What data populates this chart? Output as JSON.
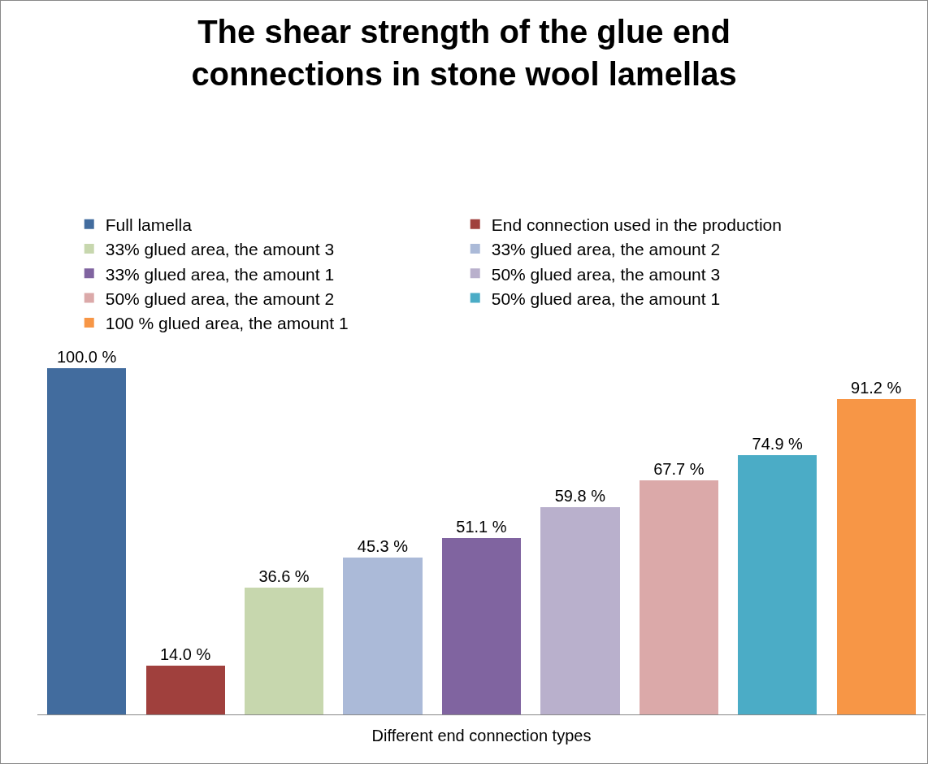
{
  "chart_data": {
    "type": "bar",
    "title": "The shear strength of the glue end connections in stone wool lamellas",
    "xlabel": "Different end connection types",
    "categories": [
      null,
      null,
      null,
      null,
      null,
      null,
      null,
      null,
      null
    ],
    "legend": "top",
    "stacked": true,
    "series": [
      {
        "name": "Full lamella",
        "color": "#426c9e",
        "values": [
          100.0,
          null,
          null,
          null,
          null,
          null,
          null,
          null,
          null
        ],
        "value_labels": [
          "100.0 %",
          null,
          null,
          null,
          null,
          null,
          null,
          null,
          null
        ]
      },
      {
        "name": "End connection used in the production",
        "color": "#a0403d",
        "values": [
          null,
          14.0,
          null,
          null,
          null,
          null,
          null,
          null,
          null
        ],
        "value_labels": [
          null,
          "14.0 %",
          null,
          null,
          null,
          null,
          null,
          null,
          null
        ]
      },
      {
        "name": "33% glued area, the amount 3",
        "color": "#c7d7ae",
        "values": [
          null,
          null,
          36.6,
          null,
          null,
          null,
          null,
          null,
          null
        ],
        "value_labels": [
          null,
          null,
          "36.6 %",
          null,
          null,
          null,
          null,
          null,
          null
        ]
      },
      {
        "name": "33% glued area, the amount 2",
        "color": "#abbad8",
        "values": [
          null,
          null,
          null,
          45.3,
          null,
          null,
          null,
          null,
          null
        ],
        "value_labels": [
          null,
          null,
          null,
          "45.3 %",
          null,
          null,
          null,
          null,
          null
        ]
      },
      {
        "name": "33% glued area, the amount 1",
        "color": "#8064a0",
        "values": [
          null,
          null,
          null,
          null,
          51.1,
          null,
          null,
          null,
          null
        ],
        "value_labels": [
          null,
          null,
          null,
          null,
          "51.1 %",
          null,
          null,
          null,
          null
        ]
      },
      {
        "name": "50% glued area, the amount 3",
        "color": "#b9b0cc",
        "values": [
          null,
          null,
          null,
          null,
          null,
          59.8,
          null,
          null,
          null
        ],
        "value_labels": [
          null,
          null,
          null,
          null,
          null,
          "59.8 %",
          null,
          null,
          null
        ]
      },
      {
        "name": "50% glued area, the amount 2",
        "color": "#dba9a9",
        "values": [
          null,
          null,
          null,
          null,
          null,
          null,
          67.7,
          null,
          null
        ],
        "value_labels": [
          null,
          null,
          null,
          null,
          null,
          null,
          "67.7 %",
          null,
          null
        ]
      },
      {
        "name": "50% glued area, the amount 1",
        "color": "#4bacc6",
        "values": [
          null,
          null,
          null,
          null,
          null,
          null,
          null,
          74.9,
          null
        ],
        "value_labels": [
          null,
          null,
          null,
          null,
          null,
          null,
          null,
          "74.9 %",
          null
        ]
      },
      {
        "name": "100 % glued area, the amount 1",
        "color": "#f79646",
        "values": [
          null,
          null,
          null,
          null,
          null,
          null,
          null,
          null,
          91.2
        ],
        "value_labels": [
          null,
          null,
          null,
          null,
          null,
          null,
          null,
          null,
          "91.2 %"
        ]
      }
    ]
  }
}
